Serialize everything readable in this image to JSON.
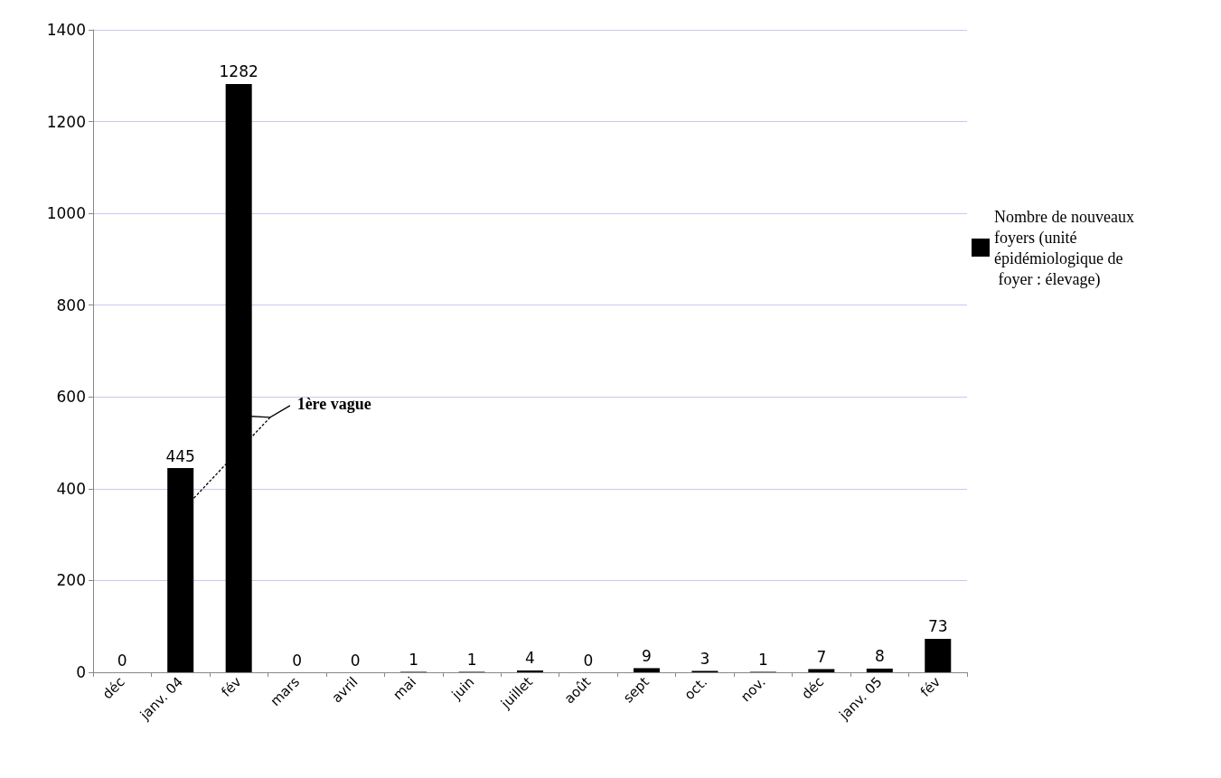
{
  "chart_data": {
    "type": "bar",
    "categories": [
      "déc",
      "janv. 04",
      "fév",
      "mars",
      "avril",
      "mai",
      "juin",
      "juillet",
      "août",
      "sept",
      "oct.",
      "nov.",
      "déc",
      "janv. 05",
      "fév"
    ],
    "series": [
      {
        "name": "Nombre de nouveaux foyers (unité épidémiologique de foyer : élevage)",
        "color": "#000000",
        "values": [
          0,
          445,
          1282,
          0,
          0,
          1,
          1,
          4,
          0,
          9,
          3,
          1,
          7,
          8,
          73
        ]
      }
    ],
    "ylim": [
      0,
      1400
    ],
    "yticks": [
      0,
      200,
      400,
      600,
      800,
      1000,
      1200,
      1400
    ],
    "grid": "y",
    "legend": "right",
    "data_labels": true,
    "annotations": [
      "1ère vague"
    ]
  }
}
